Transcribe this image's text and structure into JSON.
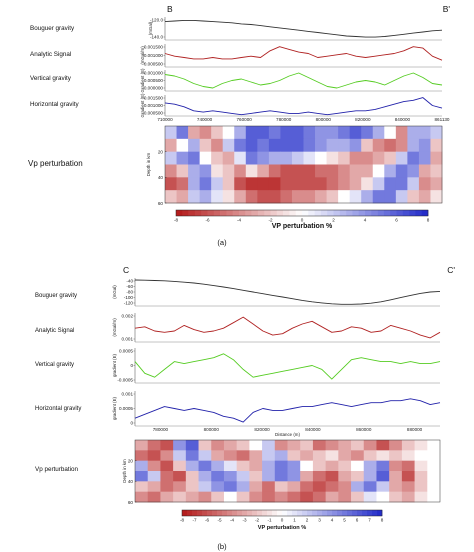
{
  "chart_data": [
    {
      "panel": "(a)",
      "type": "line",
      "profile_start": "B",
      "profile_end": "B'",
      "x_ticks": [
        "710000",
        "740000",
        "760000",
        "780000",
        "800000",
        "820000",
        "840000",
        "861130"
      ],
      "tracks": [
        {
          "name": "Bouguer gravity",
          "ylabel": "(mGal)",
          "yticks": [
            "-120.0",
            "-140.0"
          ],
          "ylim": [
            -150,
            -110
          ],
          "color": "#333333",
          "values": [
            -118,
            -117,
            -116,
            -116,
            -117,
            -118,
            -119,
            -120,
            -122,
            -123,
            -125,
            -127,
            -129,
            -131,
            -133,
            -135,
            -137,
            -139,
            -141,
            -143,
            -144,
            -145,
            -145,
            -144,
            -142,
            -140,
            -138,
            -136,
            -134,
            -133
          ]
        },
        {
          "name": "Analytic Signal",
          "ylabel": "(mGal/m)",
          "yticks": [
            "0.001500",
            "0.001000",
            "0.000500"
          ],
          "ylim": [
            0.0002,
            0.0019
          ],
          "color": "#b02222",
          "values": [
            0.0012,
            0.001,
            0.0009,
            0.0008,
            0.0008,
            0.0009,
            0.0008,
            0.0008,
            0.0009,
            0.001,
            0.0009,
            0.0014,
            0.0017,
            0.0015,
            0.0013,
            0.0012,
            0.0009,
            0.001,
            0.0011,
            0.0012,
            0.001,
            0.0009,
            0.001,
            0.0011,
            0.0012,
            0.0014,
            0.0017,
            0.0016,
            0.001,
            0.0007
          ]
        },
        {
          "name": "Vertical gravity",
          "ylabel": "Gradient (E)",
          "yticks": [
            "0.001000",
            "0.000500",
            "0.000000"
          ],
          "ylim": [
            -0.0002,
            0.0012
          ],
          "color": "#55cc22",
          "values": [
            0.0009,
            0.0008,
            0.0006,
            0.0003,
            0.0001,
            0.0,
            0.0003,
            0.0005,
            0.0006,
            0.0004,
            0.0002,
            0.0003,
            0.0005,
            0.0008,
            0.001,
            0.0007,
            0.0004,
            0.0001,
            0.0,
            0.0002,
            0.0004,
            0.0005,
            0.0004,
            0.0002,
            0.0005,
            0.0008,
            0.001,
            0.0007,
            0.0003,
            0.0002
          ]
        },
        {
          "name": "Horizontal gravity",
          "ylabel": "Gradient (E)",
          "yticks": [
            "0.001500",
            "0.001000",
            "0.000500"
          ],
          "ylim": [
            0.0002,
            0.0018
          ],
          "color": "#2222aa",
          "values": [
            0.0012,
            0.0011,
            0.0009,
            0.0006,
            0.0005,
            0.0006,
            0.0005,
            0.0004,
            0.0003,
            0.0004,
            0.0005,
            0.0006,
            0.0005,
            0.0004,
            0.0004,
            0.0005,
            0.0004,
            0.0003,
            0.0004,
            0.0005,
            0.0006,
            0.0006,
            0.0007,
            0.0009,
            0.0011,
            0.0013,
            0.0014,
            0.0016,
            0.001,
            0.0008
          ]
        }
      ],
      "heatmap": {
        "name": "Vp perturbation",
        "ylabel": "Depth in km",
        "yticks": [
          "20",
          "40",
          "60"
        ],
        "ylim": [
          0,
          60
        ],
        "cols": 24,
        "rows": 6,
        "zlim": [
          -8,
          8
        ],
        "values": [
          [
            2,
            5,
            -3,
            -4,
            -2,
            0,
            3,
            6,
            6,
            5,
            6,
            6,
            5,
            4,
            4,
            5,
            6,
            5,
            3,
            0,
            -4,
            3,
            3,
            2
          ],
          [
            -3,
            0,
            3,
            -2,
            -4,
            2,
            5,
            6,
            5,
            6,
            6,
            6,
            5,
            4,
            3,
            3,
            4,
            -2,
            -4,
            -5,
            -4,
            3,
            4,
            -2
          ],
          [
            2,
            4,
            5,
            0,
            -2,
            -3,
            1,
            5,
            4,
            3,
            3,
            2,
            1,
            0,
            -1,
            -2,
            -4,
            -4,
            -3,
            -2,
            2,
            5,
            4,
            -3
          ],
          [
            -4,
            -2,
            3,
            4,
            -1,
            -2,
            -4,
            -1,
            -3,
            -5,
            -6,
            -6,
            -6,
            -5,
            -5,
            -4,
            -3,
            -3,
            0,
            3,
            5,
            4,
            -3,
            -2
          ],
          [
            -6,
            -5,
            3,
            5,
            2,
            -2,
            -6,
            -7,
            -7,
            -7,
            -6,
            -6,
            -6,
            -6,
            -5,
            -4,
            -3,
            -1,
            2,
            5,
            5,
            2,
            -4,
            -3
          ],
          [
            -2,
            -3,
            2,
            3,
            1,
            -1,
            -3,
            -5,
            -6,
            -6,
            -5,
            -4,
            -4,
            -3,
            -2,
            0,
            1,
            3,
            5,
            5,
            2,
            -2,
            -3,
            -1
          ]
        ]
      },
      "colorbar": {
        "label": "VP perturbation %",
        "ticks": [
          "-8",
          "-6",
          "-4",
          "-2",
          "0",
          "2",
          "4",
          "6",
          "8"
        ]
      }
    },
    {
      "panel": "(b)",
      "type": "line",
      "profile_start": "C",
      "profile_end": "C'",
      "x_ticks": [
        "780000",
        "800000",
        "820000",
        "840000",
        "860000",
        "880000"
      ],
      "xlabel": "Distance (m)",
      "tracks": [
        {
          "name": "Bouguer gravity",
          "ylabel": "(mGal)",
          "yticks": [
            "-40",
            "-60",
            "-80",
            "-100",
            "-120"
          ],
          "ylim": [
            -130,
            -30
          ],
          "color": "#333333",
          "values": [
            -37,
            -38,
            -39,
            -40,
            -42,
            -45,
            -48,
            -52,
            -57,
            -62,
            -68,
            -74,
            -80,
            -86,
            -92,
            -98,
            -104,
            -110,
            -115,
            -119,
            -122,
            -124,
            -124,
            -123,
            -120,
            -115,
            -108,
            -100,
            -92,
            -85,
            -80,
            -78
          ]
        },
        {
          "name": "Analytic Signal",
          "ylabel": "(mGal/m)",
          "yticks": [
            "0.002",
            "0.001"
          ],
          "ylim": [
            0.0005,
            0.0026
          ],
          "color": "#b02222",
          "values": [
            0.0015,
            0.0016,
            0.0013,
            0.0012,
            0.0013,
            0.0017,
            0.0014,
            0.0012,
            0.0013,
            0.0015,
            0.0019,
            0.0023,
            0.0018,
            0.0013,
            0.001,
            0.0011,
            0.0015,
            0.0018,
            0.002,
            0.0016,
            0.0012,
            0.0013,
            0.0016,
            0.0015,
            0.0012,
            0.0013,
            0.0017,
            0.0015,
            0.0013,
            0.001,
            0.0008,
            0.0012
          ]
        },
        {
          "name": "Vertical gravity",
          "ylabel": "gradient (E)",
          "yticks": [
            "0.0005",
            "0",
            "-0.0005"
          ],
          "ylim": [
            -0.0009,
            0.0009
          ],
          "color": "#55cc22",
          "values": [
            0.0002,
            -0.0004,
            -0.0006,
            -0.0002,
            0.0002,
            0.0001,
            0.0002,
            0.0003,
            0.0004,
            0.0006,
            0.0003,
            -0.0002,
            -0.0006,
            -0.0005,
            -0.0004,
            -0.0003,
            -0.0002,
            -0.0001,
            0.0,
            -0.0002,
            -0.0007,
            -0.0002,
            0.0003,
            0.0004,
            0.0003,
            0.0002,
            0.0002,
            0.0001,
            0.0002,
            0.0001,
            0.0001,
            0.0002
          ]
        },
        {
          "name": "Horizontal gravity",
          "ylabel": "gradient (E)",
          "yticks": [
            "0.001",
            "0.0005",
            "0"
          ],
          "ylim": [
            -0.0004,
            0.0014
          ],
          "color": "#2222aa",
          "values": [
            0.0,
            0.0002,
            0.0004,
            0.0006,
            0.0005,
            0.0004,
            0.0005,
            0.0004,
            0.0003,
            0.0001,
            0.0,
            -0.0002,
            0.0003,
            0.0005,
            0.0004,
            0.0004,
            0.0005,
            0.0006,
            0.0006,
            0.0007,
            0.0008,
            0.0007,
            0.0006,
            0.0007,
            0.0008,
            0.0008,
            0.0009,
            0.0009,
            0.001,
            0.0009,
            0.0007,
            0.0008
          ]
        }
      ],
      "heatmap": {
        "name": "Vp perturbation",
        "ylabel": "Depth in km",
        "yticks": [
          "20",
          "40",
          "60"
        ],
        "ylim": [
          0,
          60
        ],
        "cols": 24,
        "rows": 6,
        "zlim": [
          -8,
          8
        ],
        "values": [
          [
            -3,
            -5,
            -6,
            4,
            6,
            -2,
            -4,
            -3,
            -2,
            0,
            2,
            -4,
            -3,
            -2,
            -5,
            -4,
            -3,
            -2,
            -4,
            -6,
            -4,
            -2,
            -1,
            0
          ],
          [
            -5,
            -6,
            -4,
            2,
            5,
            2,
            -3,
            -4,
            -5,
            -3,
            2,
            3,
            -2,
            -3,
            -2,
            -1,
            -3,
            -4,
            -2,
            -1,
            -2,
            -1,
            0,
            0
          ],
          [
            3,
            -4,
            -6,
            -2,
            3,
            5,
            3,
            1,
            -2,
            -3,
            3,
            5,
            4,
            0,
            -2,
            -3,
            -2,
            0,
            3,
            5,
            -4,
            -5,
            -1,
            0
          ],
          [
            5,
            2,
            -5,
            -6,
            -2,
            3,
            5,
            4,
            2,
            -2,
            3,
            5,
            4,
            -3,
            -5,
            -6,
            -3,
            -2,
            3,
            6,
            -3,
            -6,
            -2,
            0
          ],
          [
            -2,
            -3,
            -5,
            -4,
            -2,
            2,
            4,
            5,
            3,
            -3,
            -5,
            -2,
            -3,
            -5,
            -6,
            -5,
            -4,
            3,
            5,
            2,
            -3,
            -4,
            -2,
            0
          ],
          [
            -4,
            -5,
            -3,
            -2,
            -3,
            -4,
            -2,
            0,
            -2,
            -4,
            -5,
            -4,
            -5,
            -6,
            -5,
            -3,
            -4,
            -2,
            1,
            0,
            -2,
            -3,
            -1,
            0
          ]
        ]
      },
      "colorbar": {
        "label": "VP perturbation %",
        "ticks": [
          "-8",
          "-7",
          "-6",
          "-5",
          "-4",
          "-3",
          "-2",
          "-1",
          "0",
          "1",
          "2",
          "3",
          "4",
          "5",
          "6",
          "7",
          "8"
        ]
      }
    }
  ]
}
